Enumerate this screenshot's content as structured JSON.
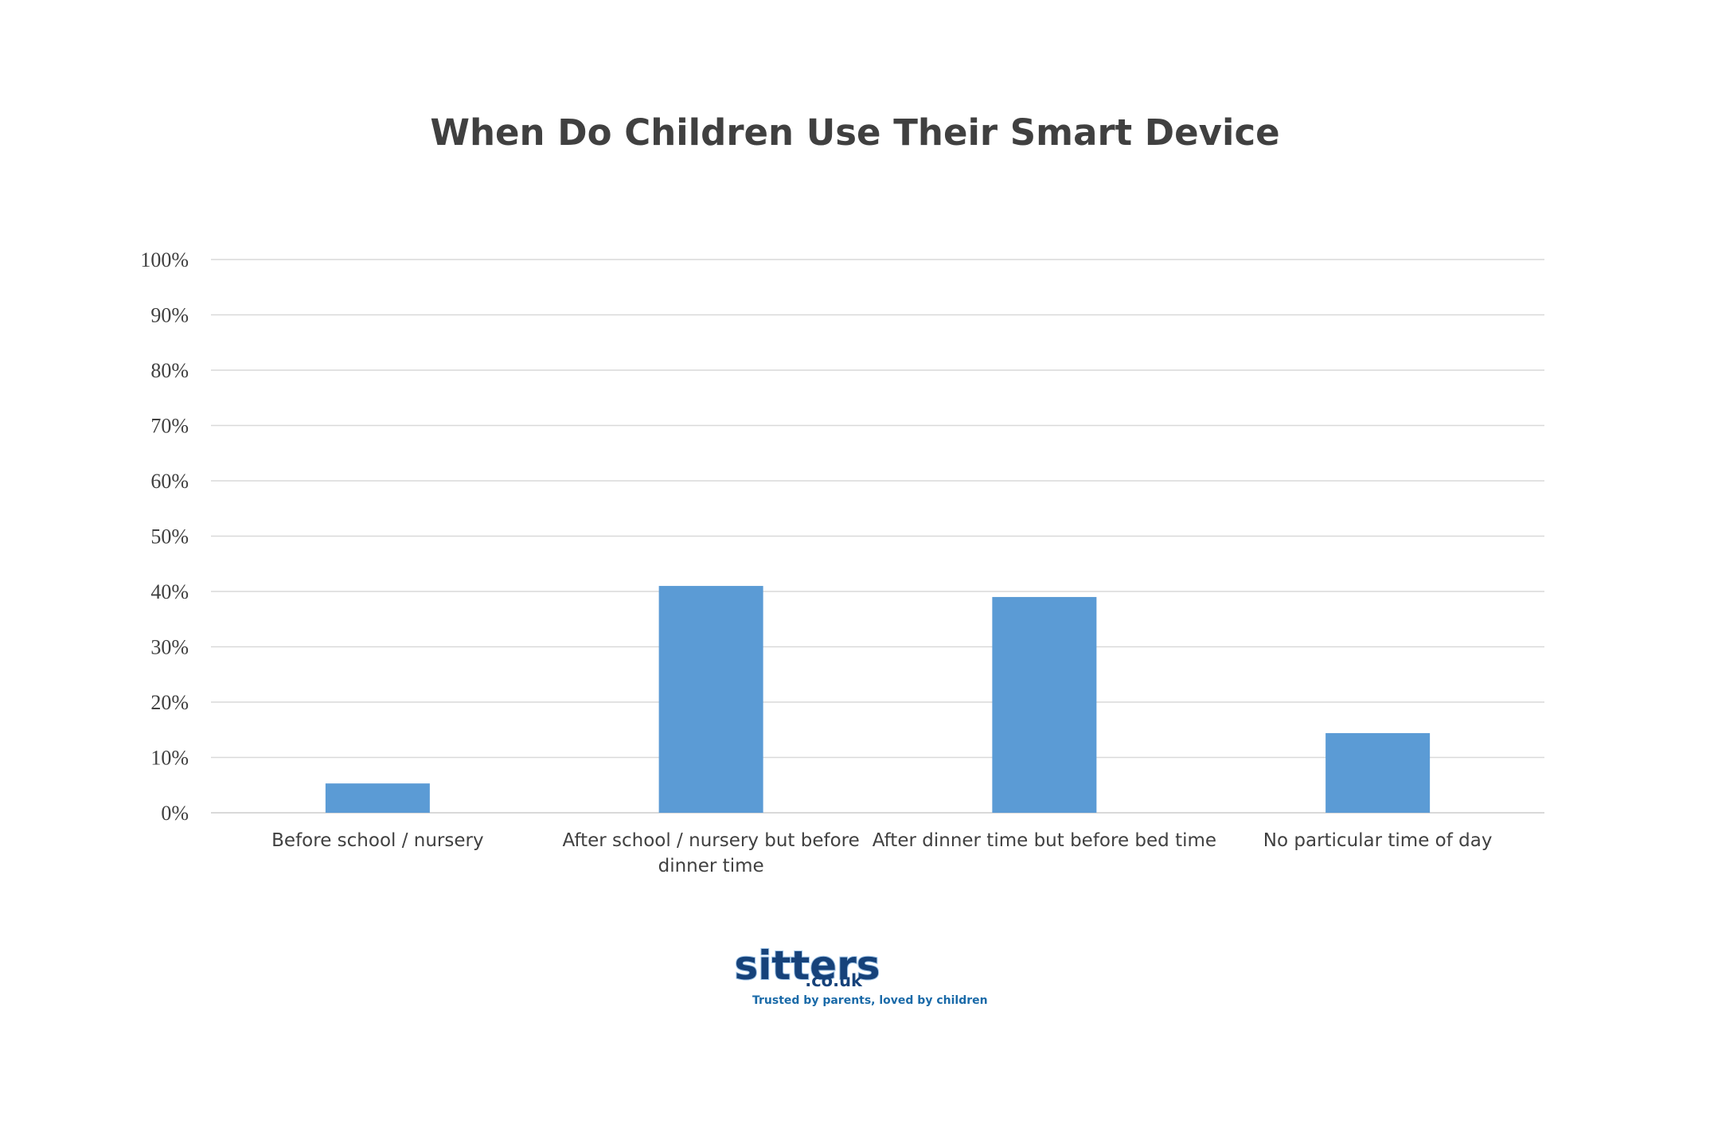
{
  "chart_data": {
    "type": "bar",
    "title": "When Do Children Use Their Smart Device",
    "categories": [
      [
        "Before school / nursery"
      ],
      [
        "After school / nursery but before",
        "dinner time"
      ],
      [
        "After dinner time but before bed time"
      ],
      [
        "No particular time of day"
      ]
    ],
    "values": [
      5.3,
      41,
      39,
      14.4
    ],
    "ylim": [
      0,
      100
    ],
    "yticks": [
      "0%",
      "10%",
      "20%",
      "30%",
      "40%",
      "50%",
      "60%",
      "70%",
      "80%",
      "90%",
      "100%"
    ],
    "grid": true,
    "bar_color": "#5b9bd5"
  },
  "logo": {
    "brand": "sitters",
    "domain": ".co.uk",
    "tagline": "Trusted by parents, loved by children",
    "color": "#16427a",
    "tagline_color": "#1a6aa8"
  }
}
